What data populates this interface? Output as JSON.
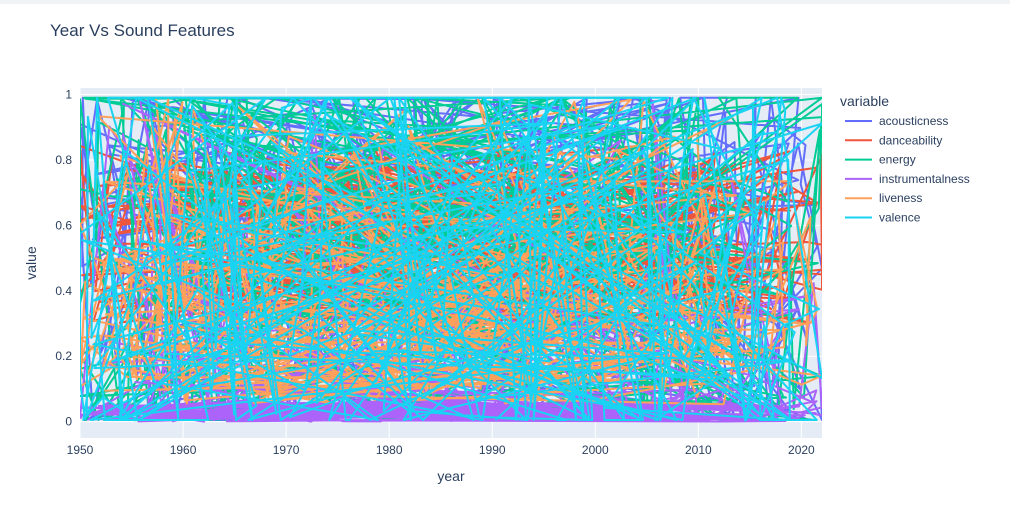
{
  "chart_data": {
    "type": "line",
    "title": "Year Vs Sound Features",
    "xlabel": "year",
    "ylabel": "value",
    "xlim": [
      1950,
      2022
    ],
    "ylim": [
      -0.05,
      1.02
    ],
    "xticks": [
      1950,
      1960,
      1970,
      1980,
      1990,
      2000,
      2010,
      2020
    ],
    "yticks": [
      0,
      0.2,
      0.4,
      0.6,
      0.8,
      1
    ],
    "ytick_labels": [
      "0",
      "0.2",
      "0.4",
      "0.6",
      "0.8",
      "1"
    ],
    "grid": true,
    "legend": {
      "title": "variable",
      "placement": "right"
    },
    "series": [
      {
        "name": "acousticness",
        "color": "#636efa",
        "range": [
          0.0,
          0.996
        ],
        "style": "dense"
      },
      {
        "name": "danceability",
        "color": "#ef553b",
        "range": [
          0.1,
          0.95
        ],
        "style": "mid"
      },
      {
        "name": "energy",
        "color": "#00cc96",
        "range": [
          0.02,
          0.99
        ],
        "style": "dense"
      },
      {
        "name": "instrumentalness",
        "color": "#ab63fa",
        "range": [
          0.0,
          0.99
        ],
        "style": "low"
      },
      {
        "name": "liveness",
        "color": "#ffa15a",
        "range": [
          0.03,
          0.99
        ],
        "style": "lowmid"
      },
      {
        "name": "valence",
        "color": "#19d3f3",
        "range": [
          0.0,
          0.99
        ],
        "style": "dense"
      }
    ]
  }
}
